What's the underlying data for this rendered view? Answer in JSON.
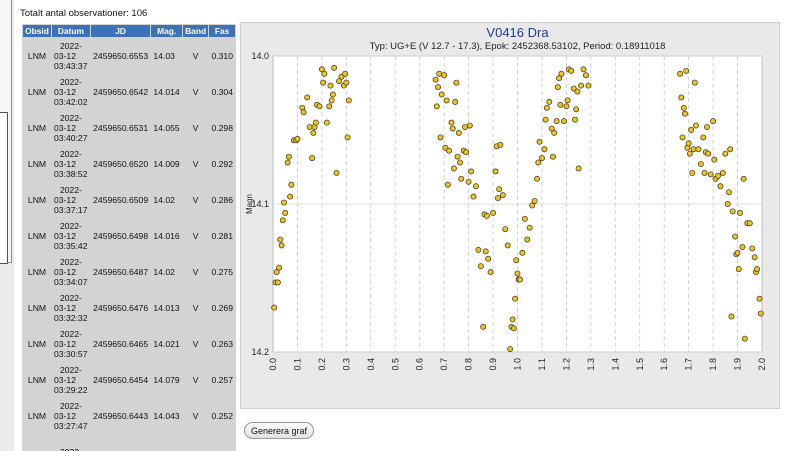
{
  "header": {
    "total_text": "Totalt antal observationer: 106"
  },
  "table": {
    "columns": [
      "Obsid",
      "Datum",
      "JD",
      "Mag.",
      "Band",
      "Fas"
    ],
    "rows": [
      {
        "obsid": "LNM",
        "date": "2022-",
        "date2": "03-12",
        "date3": "03:43:37",
        "jd": "2459650.6553",
        "mag": "14.03",
        "band": "V",
        "fas": "0.310"
      },
      {
        "obsid": "LNM",
        "date": "2022-",
        "date2": "03-12",
        "date3": "03:42:02",
        "jd": "2459650.6542",
        "mag": "14.014",
        "band": "V",
        "fas": "0.304"
      },
      {
        "obsid": "LNM",
        "date": "2022-",
        "date2": "03-12",
        "date3": "03:40:27",
        "jd": "2459650.6531",
        "mag": "14.055",
        "band": "V",
        "fas": "0.298"
      },
      {
        "obsid": "LNM",
        "date": "2022-",
        "date2": "03-12",
        "date3": "03:38:52",
        "jd": "2459650.6520",
        "mag": "14.009",
        "band": "V",
        "fas": "0.292"
      },
      {
        "obsid": "LNM",
        "date": "2022-",
        "date2": "03-12",
        "date3": "03:37:17",
        "jd": "2459650.6509",
        "mag": "14.02",
        "band": "V",
        "fas": "0.286"
      },
      {
        "obsid": "LNM",
        "date": "2022-",
        "date2": "03-12",
        "date3": "03:35:42",
        "jd": "2459650.6498",
        "mag": "14.016",
        "band": "V",
        "fas": "0.281"
      },
      {
        "obsid": "LNM",
        "date": "2022-",
        "date2": "03-12",
        "date3": "03:34:07",
        "jd": "2459650.6487",
        "mag": "14.02",
        "band": "V",
        "fas": "0.275"
      },
      {
        "obsid": "LNM",
        "date": "2022-",
        "date2": "03-12",
        "date3": "03:32:32",
        "jd": "2459650.6476",
        "mag": "14.013",
        "band": "V",
        "fas": "0.269"
      },
      {
        "obsid": "LNM",
        "date": "2022-",
        "date2": "03-12",
        "date3": "03:30:57",
        "jd": "2459650.6465",
        "mag": "14.021",
        "band": "V",
        "fas": "0.263"
      },
      {
        "obsid": "LNM",
        "date": "2022-",
        "date2": "03-12",
        "date3": "03:29:22",
        "jd": "2459650.6454",
        "mag": "14.079",
        "band": "V",
        "fas": "0.257"
      },
      {
        "obsid": "LNM",
        "date": "2022-",
        "date2": "03-12",
        "date3": "03:27:47",
        "jd": "2459650.6443",
        "mag": "14.043",
        "band": "V",
        "fas": "0.252"
      },
      {
        "obsid": "",
        "date": "2022-",
        "date2": "",
        "date3": "",
        "jd": "",
        "mag": "",
        "band": "",
        "fas": ""
      }
    ]
  },
  "chart_data": {
    "type": "scatter",
    "title": "V0416 Dra",
    "subtitle": "Typ: UG+E (V 12.7 - 17.3), Epok: 2452368.53102, Period: 0.18911018",
    "xlabel": "",
    "ylabel": "Magn",
    "xlim": [
      0.0,
      2.0
    ],
    "ylim": [
      14.2,
      14.0
    ],
    "x_ticks": [
      "0.0",
      "0.1",
      "0.2",
      "0.3",
      "0.4",
      "0.5",
      "0.6",
      "0.7",
      "0.8",
      "0.9",
      "1.0",
      "1.1",
      "1.2",
      "1.3",
      "1.4",
      "1.5",
      "1.6",
      "1.7",
      "1.8",
      "1.9",
      "2.0"
    ],
    "y_ticks": [
      "14.0",
      "14.1",
      "14.2"
    ],
    "marker_color": "#f0c419",
    "marker_edge": "#333333",
    "points": [
      [
        0.005,
        14.17
      ],
      [
        0.01,
        14.153
      ],
      [
        0.015,
        14.146
      ],
      [
        0.02,
        14.153
      ],
      [
        0.025,
        14.143
      ],
      [
        0.03,
        14.124
      ],
      [
        0.035,
        14.128
      ],
      [
        0.04,
        14.111
      ],
      [
        0.045,
        14.099
      ],
      [
        0.05,
        14.106
      ],
      [
        0.06,
        14.072
      ],
      [
        0.065,
        14.068
      ],
      [
        0.07,
        14.095
      ],
      [
        0.075,
        14.087
      ],
      [
        0.085,
        14.057
      ],
      [
        0.095,
        14.057
      ],
      [
        0.1,
        14.056
      ],
      [
        0.12,
        14.035
      ],
      [
        0.125,
        14.038
      ],
      [
        0.14,
        14.028
      ],
      [
        0.15,
        14.048
      ],
      [
        0.16,
        14.069
      ],
      [
        0.165,
        14.052
      ],
      [
        0.17,
        14.048
      ],
      [
        0.175,
        14.045
      ],
      [
        0.18,
        14.033
      ],
      [
        0.19,
        14.034
      ],
      [
        0.2,
        14.009
      ],
      [
        0.205,
        14.018
      ],
      [
        0.21,
        14.012
      ],
      [
        0.22,
        14.045
      ],
      [
        0.23,
        14.034
      ],
      [
        0.235,
        14.02
      ],
      [
        0.24,
        14.03
      ],
      [
        0.245,
        14.026
      ],
      [
        0.25,
        14.008
      ],
      [
        0.26,
        14.079
      ],
      [
        0.27,
        14.017
      ],
      [
        0.28,
        14.014
      ],
      [
        0.29,
        14.02
      ],
      [
        0.295,
        14.012
      ],
      [
        0.3,
        14.018
      ],
      [
        0.305,
        14.055
      ],
      [
        0.31,
        14.03
      ],
      [
        0.665,
        14.016
      ],
      [
        0.67,
        14.034
      ],
      [
        0.675,
        14.021
      ],
      [
        0.68,
        14.012
      ],
      [
        0.685,
        14.055
      ],
      [
        0.69,
        14.026
      ],
      [
        0.7,
        14.013
      ],
      [
        0.705,
        14.062
      ],
      [
        0.71,
        14.03
      ],
      [
        0.715,
        14.087
      ],
      [
        0.72,
        14.064
      ],
      [
        0.73,
        14.045
      ],
      [
        0.735,
        14.049
      ],
      [
        0.74,
        14.076
      ],
      [
        0.745,
        14.031
      ],
      [
        0.75,
        14.018
      ],
      [
        0.755,
        14.068
      ],
      [
        0.76,
        14.052
      ],
      [
        0.765,
        14.072
      ],
      [
        0.77,
        14.083
      ],
      [
        0.78,
        14.064
      ],
      [
        0.785,
        14.048
      ],
      [
        0.79,
        14.065
      ],
      [
        0.8,
        14.085
      ],
      [
        0.805,
        14.047
      ],
      [
        0.81,
        14.078
      ],
      [
        0.82,
        14.095
      ],
      [
        0.83,
        14.088
      ],
      [
        0.84,
        14.131
      ],
      [
        0.85,
        14.142
      ],
      [
        0.86,
        14.183
      ],
      [
        0.865,
        14.107
      ],
      [
        0.87,
        14.132
      ],
      [
        0.875,
        14.108
      ],
      [
        0.88,
        14.137
      ],
      [
        0.89,
        14.146
      ],
      [
        0.9,
        14.106
      ],
      [
        0.91,
        14.078
      ],
      [
        0.915,
        14.061
      ],
      [
        0.92,
        14.096
      ],
      [
        0.925,
        14.09
      ],
      [
        0.93,
        14.06
      ],
      [
        0.94,
        14.094
      ],
      [
        0.95,
        14.117
      ],
      [
        0.96,
        14.128
      ],
      [
        0.97,
        14.198
      ],
      [
        0.975,
        14.183
      ],
      [
        0.98,
        14.178
      ],
      [
        0.985,
        14.184
      ],
      [
        0.99,
        14.164
      ],
      [
        0.995,
        14.138
      ],
      [
        1.0,
        14.147
      ],
      [
        1.005,
        14.151
      ],
      [
        1.01,
        14.151
      ],
      [
        1.02,
        14.133
      ],
      [
        1.03,
        14.11
      ],
      [
        1.04,
        14.124
      ],
      [
        1.05,
        14.116
      ],
      [
        1.06,
        14.101
      ],
      [
        1.07,
        14.098
      ],
      [
        1.08,
        14.083
      ],
      [
        1.085,
        14.072
      ],
      [
        1.09,
        14.058
      ],
      [
        1.1,
        14.069
      ],
      [
        1.11,
        14.063
      ],
      [
        1.115,
        14.043
      ],
      [
        1.12,
        14.035
      ],
      [
        1.13,
        14.031
      ],
      [
        1.14,
        14.049
      ],
      [
        1.145,
        14.068
      ],
      [
        1.15,
        14.052
      ],
      [
        1.16,
        14.044
      ],
      [
        1.165,
        14.021
      ],
      [
        1.17,
        14.015
      ],
      [
        1.175,
        14.033
      ],
      [
        1.18,
        14.012
      ],
      [
        1.19,
        14.044
      ],
      [
        1.2,
        14.034
      ],
      [
        1.205,
        14.03
      ],
      [
        1.21,
        14.009
      ],
      [
        1.22,
        14.01
      ],
      [
        1.23,
        14.022
      ],
      [
        1.235,
        14.043
      ],
      [
        1.24,
        14.036
      ],
      [
        1.245,
        14.024
      ],
      [
        1.25,
        14.076
      ],
      [
        1.26,
        14.02
      ],
      [
        1.27,
        14.009
      ],
      [
        1.28,
        14.013
      ],
      [
        1.29,
        14.02
      ],
      [
        1.665,
        14.012
      ],
      [
        1.67,
        14.028
      ],
      [
        1.675,
        14.055
      ],
      [
        1.68,
        14.035
      ],
      [
        1.685,
        14.039
      ],
      [
        1.69,
        14.01
      ],
      [
        1.695,
        14.062
      ],
      [
        1.7,
        14.059
      ],
      [
        1.705,
        14.066
      ],
      [
        1.71,
        14.05
      ],
      [
        1.715,
        14.079
      ],
      [
        1.72,
        14.063
      ],
      [
        1.725,
        14.018
      ],
      [
        1.73,
        14.047
      ],
      [
        1.74,
        14.063
      ],
      [
        1.75,
        14.073
      ],
      [
        1.76,
        14.055
      ],
      [
        1.765,
        14.079
      ],
      [
        1.77,
        14.065
      ],
      [
        1.775,
        14.048
      ],
      [
        1.78,
        14.066
      ],
      [
        1.79,
        14.08
      ],
      [
        1.8,
        14.044
      ],
      [
        1.805,
        14.07
      ],
      [
        1.81,
        14.083
      ],
      [
        1.82,
        14.081
      ],
      [
        1.83,
        14.088
      ],
      [
        1.84,
        14.079
      ],
      [
        1.85,
        14.066
      ],
      [
        1.86,
        14.1
      ],
      [
        1.865,
        14.092
      ],
      [
        1.87,
        14.063
      ],
      [
        1.875,
        14.176
      ],
      [
        1.88,
        14.105
      ],
      [
        1.89,
        14.122
      ],
      [
        1.895,
        14.134
      ],
      [
        1.9,
        14.133
      ],
      [
        1.905,
        14.144
      ],
      [
        1.91,
        14.106
      ],
      [
        1.92,
        14.129
      ],
      [
        1.925,
        14.083
      ],
      [
        1.93,
        14.191
      ],
      [
        1.94,
        14.113
      ],
      [
        1.95,
        14.113
      ],
      [
        1.96,
        14.13
      ],
      [
        1.97,
        14.136
      ],
      [
        1.975,
        14.146
      ],
      [
        1.98,
        14.144
      ],
      [
        1.99,
        14.164
      ],
      [
        1.995,
        14.174
      ]
    ]
  },
  "button": {
    "label": "Generera graf"
  }
}
